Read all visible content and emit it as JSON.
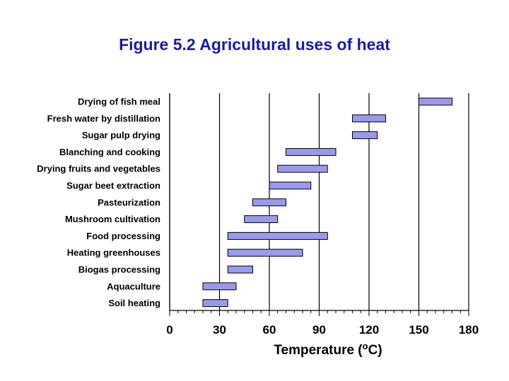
{
  "title": "Figure 5.2 Agricultural uses of heat",
  "colors": {
    "title": "#1a1aa8",
    "bar_fill": "#9999ee",
    "bar_stroke": "#000000",
    "grid": "#000000"
  },
  "chart_data": {
    "type": "bar",
    "orientation": "horizontal-range",
    "categories": [
      "Drying of fish meal",
      "Fresh water by distillation",
      "Sugar pulp drying",
      "Blanching and cooking",
      "Drying fruits and vegetables",
      "Sugar beet extraction",
      "Pasteurization",
      "Mushroom cultivation",
      "Food processing",
      "Heating greenhouses",
      "Biogas processing",
      "Aquaculture",
      "Soil heating"
    ],
    "ranges": [
      [
        150,
        170
      ],
      [
        110,
        130
      ],
      [
        110,
        125
      ],
      [
        70,
        100
      ],
      [
        65,
        95
      ],
      [
        60,
        85
      ],
      [
        50,
        70
      ],
      [
        45,
        65
      ],
      [
        35,
        95
      ],
      [
        35,
        80
      ],
      [
        35,
        50
      ],
      [
        20,
        40
      ],
      [
        20,
        35
      ]
    ],
    "xlim": [
      0,
      180
    ],
    "xticks": [
      "0",
      "30",
      "60",
      "90",
      "120",
      "150",
      "180"
    ],
    "xlabel_main": "Temperature (",
    "xlabel_sup": "o",
    "xlabel_end": "C)",
    "ylabel": "",
    "grid": "vertical gridlines at major ticks"
  }
}
